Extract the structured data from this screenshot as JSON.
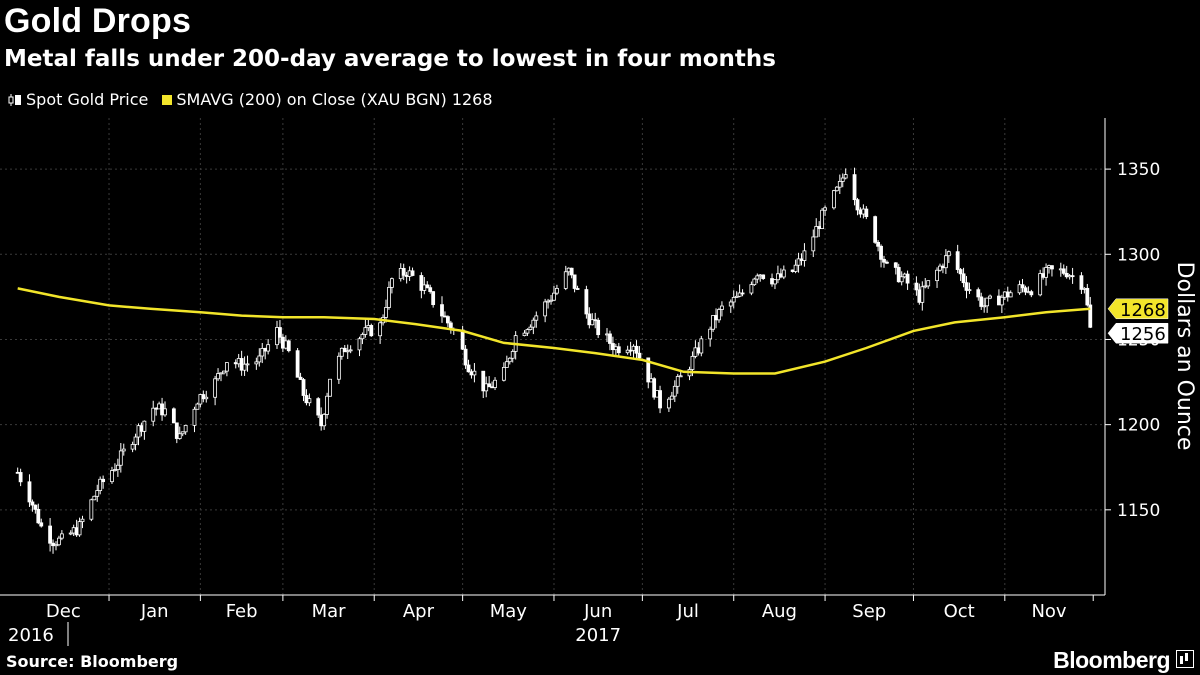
{
  "header": {
    "title": "Gold Drops",
    "subtitle": "Metal falls under 200-day average to lowest in four months"
  },
  "legend": [
    {
      "label": "Spot Gold Price",
      "color": "#ffffff",
      "icon": "candlestick-icon"
    },
    {
      "label": "SMAVG (200) on Close (XAU BGN) 1268",
      "color": "#f2e52a",
      "icon": "square-swatch"
    }
  ],
  "footer": {
    "source": "Source: Bloomberg",
    "brand": "Bloomberg"
  },
  "chart_data": {
    "type": "line",
    "ylabel": "Dollars an Ounce",
    "ylim": [
      1100,
      1380
    ],
    "y_ticks": [
      1150,
      1200,
      1250,
      1300,
      1350
    ],
    "grid": true,
    "months": [
      "Dec",
      "Jan",
      "Feb",
      "Mar",
      "Apr",
      "May",
      "Jun",
      "Jul",
      "Aug",
      "Sep",
      "Oct",
      "Nov"
    ],
    "years": [
      {
        "label": "2016",
        "month": "Dec"
      },
      {
        "label": "2017",
        "month": "Jun"
      }
    ],
    "last_value_labels": [
      {
        "value": 1268,
        "label": "1268",
        "color": "#f2e52a",
        "series": "SMAVG (200) on Close (XAU BGN)"
      },
      {
        "value": 1256,
        "label": "1256",
        "color": "#ffffff",
        "series": "Spot Gold Price"
      }
    ],
    "series": [
      {
        "name": "Spot Gold Price",
        "kind": "candlestick",
        "color": "#ffffff",
        "x": [
          "2016-12-01",
          "2016-12-05",
          "2016-12-09",
          "2016-12-13",
          "2016-12-16",
          "2016-12-22",
          "2016-12-28",
          "2017-01-04",
          "2017-01-10",
          "2017-01-16",
          "2017-01-20",
          "2017-01-25",
          "2017-01-31",
          "2017-02-06",
          "2017-02-10",
          "2017-02-15",
          "2017-02-21",
          "2017-02-27",
          "2017-03-03",
          "2017-03-08",
          "2017-03-14",
          "2017-03-17",
          "2017-03-22",
          "2017-03-28",
          "2017-04-03",
          "2017-04-07",
          "2017-04-12",
          "2017-04-18",
          "2017-04-24",
          "2017-04-28",
          "2017-05-03",
          "2017-05-09",
          "2017-05-15",
          "2017-05-19",
          "2017-05-25",
          "2017-05-31",
          "2017-06-06",
          "2017-06-12",
          "2017-06-16",
          "2017-06-22",
          "2017-06-28",
          "2017-07-03",
          "2017-07-07",
          "2017-07-12",
          "2017-07-18",
          "2017-07-24",
          "2017-07-28",
          "2017-08-03",
          "2017-08-09",
          "2017-08-15",
          "2017-08-21",
          "2017-08-25",
          "2017-08-31",
          "2017-09-06",
          "2017-09-08",
          "2017-09-12",
          "2017-09-18",
          "2017-09-22",
          "2017-09-28",
          "2017-10-03",
          "2017-10-09",
          "2017-10-13",
          "2017-10-19",
          "2017-10-25",
          "2017-10-31",
          "2017-11-06",
          "2017-11-10",
          "2017-11-16",
          "2017-11-22",
          "2017-11-28",
          "2017-11-30"
        ],
        "y": [
          1172,
          1158,
          1140,
          1132,
          1132,
          1140,
          1162,
          1178,
          1195,
          1210,
          1208,
          1192,
          1215,
          1225,
          1238,
          1235,
          1238,
          1255,
          1242,
          1218,
          1200,
          1228,
          1245,
          1253,
          1258,
          1285,
          1290,
          1280,
          1265,
          1255,
          1235,
          1220,
          1230,
          1252,
          1262,
          1275,
          1290,
          1265,
          1255,
          1245,
          1248,
          1228,
          1212,
          1222,
          1238,
          1258,
          1268,
          1275,
          1290,
          1285,
          1290,
          1300,
          1322,
          1340,
          1350,
          1330,
          1310,
          1292,
          1285,
          1275,
          1290,
          1300,
          1282,
          1270,
          1275,
          1280,
          1280,
          1290,
          1290,
          1282,
          1256
        ]
      },
      {
        "name": "SMAVG (200) on Close (XAU BGN)",
        "kind": "line",
        "color": "#f2e52a",
        "x": [
          "2016-12-01",
          "2016-12-15",
          "2017-01-01",
          "2017-01-15",
          "2017-02-01",
          "2017-02-15",
          "2017-03-01",
          "2017-03-15",
          "2017-04-01",
          "2017-04-15",
          "2017-05-01",
          "2017-05-15",
          "2017-06-01",
          "2017-06-15",
          "2017-07-01",
          "2017-07-15",
          "2017-08-01",
          "2017-08-15",
          "2017-09-01",
          "2017-09-15",
          "2017-10-01",
          "2017-10-15",
          "2017-11-01",
          "2017-11-15",
          "2017-11-30"
        ],
        "y": [
          1280,
          1275,
          1270,
          1268,
          1266,
          1264,
          1263,
          1263,
          1262,
          1259,
          1255,
          1248,
          1245,
          1242,
          1238,
          1231,
          1230,
          1230,
          1237,
          1245,
          1255,
          1260,
          1263,
          1266,
          1268
        ]
      }
    ]
  }
}
